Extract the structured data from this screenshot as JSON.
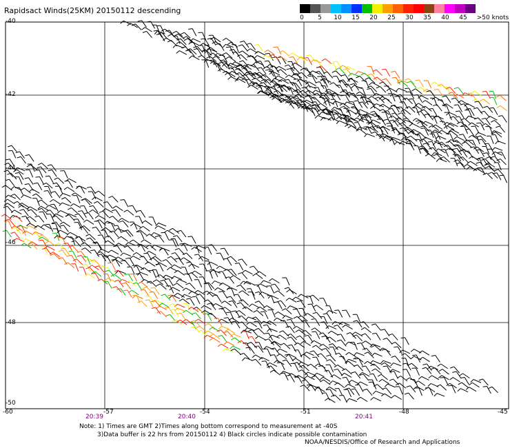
{
  "title": "Rapidsact Winds(25KM) 20150112 descending",
  "lat_labels": [
    "-40",
    "-42",
    "-44",
    "-46",
    "-48",
    "-50"
  ],
  "lon_labels": [
    "-60",
    "-57",
    "-54",
    "-51",
    "-48",
    "-45"
  ],
  "time_labels": [
    "20:39",
    "20:40",
    "20:41"
  ],
  "scale": {
    "labels": [
      "0",
      "5",
      "10",
      "15",
      "20",
      "25",
      "30",
      "35",
      "40",
      "45",
      ">50 knots"
    ],
    "colors": [
      "#000000",
      "#555555",
      "#999999",
      "#00c0ff",
      "#0090ff",
      "#0030ff",
      "#00c000",
      "#f0f000",
      "#ffa000",
      "#ff6000",
      "#ff2000",
      "#ff0000",
      "#8b4513",
      "#ff80a0",
      "#ff00ff",
      "#c000c0",
      "#6a0080"
    ]
  },
  "notes": {
    "line1": "Note: 1) Times are GMT 2)Times along bottom correspond to measurement at -40S",
    "line2": "3)Data buffer is 22 hrs from 20150112 4) Black circles indicate possible contamination",
    "credit": "NOAA/NESDIS/Office of Research and Applications"
  },
  "colors": {
    "barb_default": "#000000",
    "grid": "#000000"
  }
}
